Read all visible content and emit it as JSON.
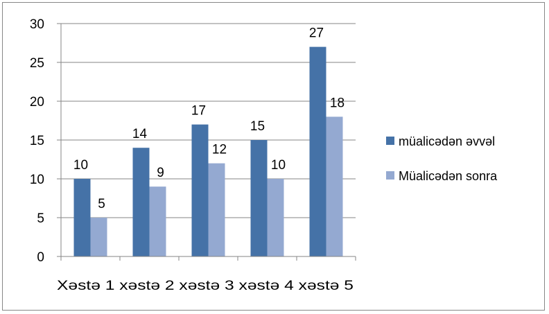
{
  "chart_data": {
    "type": "bar",
    "title": "",
    "xlabel": "",
    "ylabel": "",
    "categories": [
      "Xəstə 1",
      "xəstə 2",
      "xəstə 3",
      "xəstə 4",
      "xəstə 5"
    ],
    "category_axis_text": "Xəstə 1 xəstə 2 xəstə 3 xəstə 4 xəstə 5",
    "series": [
      {
        "name": "müalicədən əvvəl",
        "values": [
          10,
          14,
          17,
          15,
          27
        ],
        "color": "#4572A7"
      },
      {
        "name": "Müalicədən sonra",
        "values": [
          5,
          9,
          12,
          10,
          18
        ],
        "color": "#94A9D1"
      }
    ],
    "ylim": [
      0,
      30
    ],
    "yticks": [
      "0",
      "5",
      "10",
      "15",
      "20",
      "25",
      "30"
    ],
    "grid": true,
    "gridline_color": "#868686",
    "legend_position": "right",
    "data_labels": true
  }
}
